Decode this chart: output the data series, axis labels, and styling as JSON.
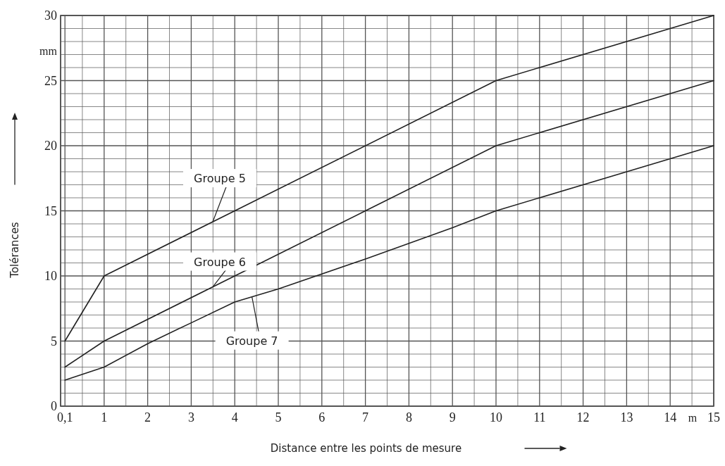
{
  "chart_data": {
    "type": "line",
    "xlabel": "Distance entre les points de mesure",
    "ylabel": "Tolérances",
    "xlim": [
      0,
      15
    ],
    "ylim": [
      0,
      30
    ],
    "xticks": [
      {
        "value": 0.1,
        "label": "0,1"
      },
      {
        "value": 0.5,
        "label": null
      },
      1,
      {
        "value": 1.5,
        "label": null
      },
      2,
      {
        "value": 2.5,
        "label": null
      },
      3,
      {
        "value": 3.5,
        "label": null
      },
      4,
      {
        "value": 4.5,
        "label": null
      },
      5,
      {
        "value": 5.5,
        "label": null
      },
      6,
      {
        "value": 6.5,
        "label": null
      },
      7,
      {
        "value": 7.5,
        "label": null
      },
      8,
      {
        "value": 8.5,
        "label": null
      },
      9,
      {
        "value": 9.5,
        "label": null
      },
      10,
      {
        "value": 10.5,
        "label": null
      },
      11,
      {
        "value": 11.5,
        "label": null
      },
      12,
      {
        "value": 12.5,
        "label": null
      },
      13,
      {
        "value": 13.5,
        "label": null
      },
      14,
      {
        "value": 14.5,
        "label": null
      },
      15
    ],
    "yticks": [
      0,
      {
        "value": 1,
        "label": null
      },
      {
        "value": 2,
        "label": null
      },
      {
        "value": 3,
        "label": null
      },
      {
        "value": 4,
        "label": null
      },
      5,
      {
        "value": 6,
        "label": null
      },
      {
        "value": 7,
        "label": null
      },
      {
        "value": 8,
        "label": null
      },
      {
        "value": 9,
        "label": null
      },
      10,
      {
        "value": 11,
        "label": null
      },
      {
        "value": 12,
        "label": null
      },
      {
        "value": 13,
        "label": null
      },
      {
        "value": 14,
        "label": null
      },
      15,
      {
        "value": 16,
        "label": null
      },
      {
        "value": 17,
        "label": null
      },
      {
        "value": 18,
        "label": null
      },
      {
        "value": 19,
        "label": null
      },
      20,
      {
        "value": 21,
        "label": null
      },
      {
        "value": 22,
        "label": null
      },
      {
        "value": 23,
        "label": null
      },
      {
        "value": 24,
        "label": null
      },
      25,
      {
        "value": 26,
        "label": null
      },
      {
        "value": 27,
        "label": null
      },
      {
        "value": 28,
        "label": null
      },
      {
        "value": 29,
        "label": null
      },
      30
    ],
    "grid": true,
    "marker": "none",
    "line_style": "solid",
    "series": [
      {
        "name": "Groupe 5",
        "color": "#222222",
        "x": [
          0.1,
          1,
          4,
          10,
          15
        ],
        "values": [
          5,
          10,
          15,
          25,
          30
        ]
      },
      {
        "name": "Groupe 6",
        "color": "#222222",
        "x": [
          0.1,
          1,
          4,
          7,
          10,
          15
        ],
        "values": [
          3,
          5,
          10,
          15,
          20,
          25
        ]
      },
      {
        "name": "Groupe 7",
        "color": "#222222",
        "x": [
          0.1,
          1,
          2,
          3,
          4,
          5,
          7,
          9,
          10,
          15
        ],
        "values": [
          2,
          3,
          4.8,
          6.4,
          8,
          9,
          11.3,
          13.7,
          15,
          20
        ]
      }
    ],
    "annotations": [
      "mm",
      "m"
    ]
  }
}
